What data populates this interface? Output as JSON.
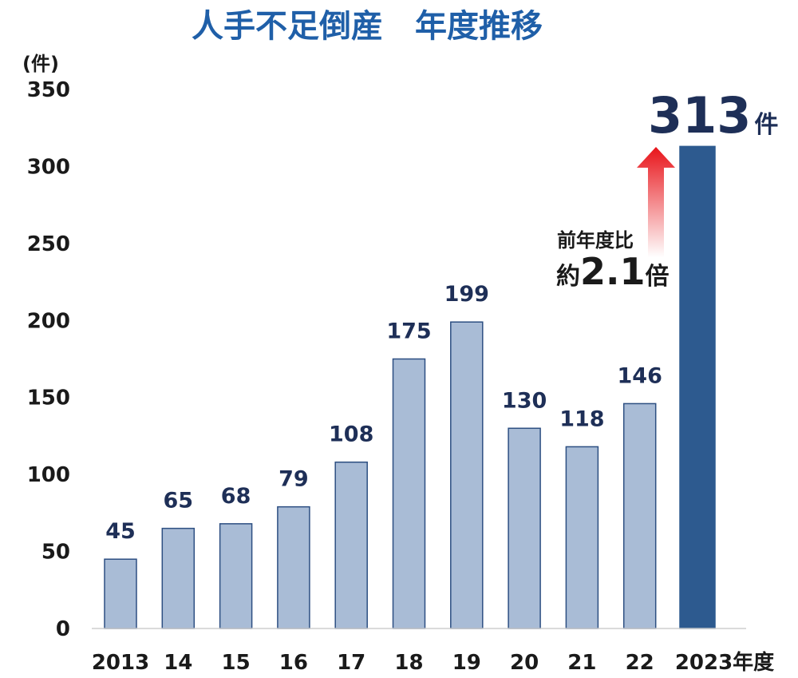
{
  "colors": {
    "title": "#1f5fa8",
    "bar": "#a9bcd6",
    "bar_edge": "#2d4f82",
    "highlight_bar": "#2d5a8f",
    "value_label": "#1e2f57",
    "arrow_top": "#e8141a",
    "arrow_bottom": "#ffffff"
  },
  "chart_data": {
    "type": "bar",
    "title": "人手不足倒産　年度推移",
    "ylabel": "(件)",
    "ylim": [
      0,
      350
    ],
    "yticks": [
      0,
      50,
      100,
      150,
      200,
      250,
      300,
      350
    ],
    "grid": false,
    "categories": [
      "2013",
      "14",
      "15",
      "16",
      "17",
      "18",
      "19",
      "20",
      "21",
      "22",
      "2023年度"
    ],
    "values": [
      45,
      65,
      68,
      79,
      108,
      175,
      199,
      130,
      118,
      146,
      313
    ],
    "data_labels": [
      "45",
      "65",
      "68",
      "79",
      "108",
      "175",
      "199",
      "130",
      "118",
      "146",
      ""
    ],
    "highlight": {
      "value_text": "313",
      "unit_text": "件"
    },
    "annotation": {
      "line1": "前年度比",
      "prefix": "約",
      "value": "2.1",
      "suffix": "倍"
    }
  }
}
